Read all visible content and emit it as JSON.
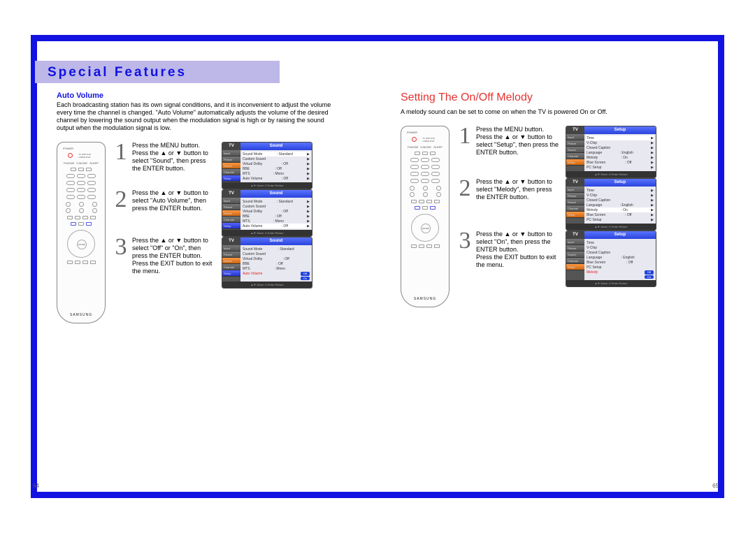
{
  "colors": {
    "frame": "#1212e2",
    "headerBand": "#bdb8e8",
    "sectionTitle": "#e63232",
    "osdHeaderGradFrom": "#5a74ff",
    "osdHeaderGradTo": "#2a44dd"
  },
  "header": "Special Features",
  "pageLeft": "64",
  "pageRight": "65",
  "left": {
    "subtitle": "Auto Volume",
    "intro": "Each broadcasting station has its own signal conditions, and it is inconvenient to adjust the volume every time the channel is changed. \"Auto Volume\" automatically adjusts the volume of the desired channel by lowering the sound output when the modulation signal is high or by raising the sound output when the modulation signal is low.",
    "steps": [
      {
        "n": "1",
        "text": "Press the MENU button.\nPress the ▲ or ▼ button to select \"Sound\", then press the ENTER button."
      },
      {
        "n": "2",
        "text": "Press the ▲ or ▼ button to select \"Auto Volume\", then press the ENTER button."
      },
      {
        "n": "3",
        "text": "Press the ▲ or ▼ button to select \"Off\" or \"On\", then press the ENTER button.\nPress the EXIT button to exit the menu."
      }
    ],
    "osdTitle": "Sound",
    "osdTv": "TV",
    "sideMenu": [
      "Input",
      "Picture",
      "Sound",
      "Channel",
      "Setup"
    ],
    "osd1Rows": [
      [
        "Sound Mode",
        ": Standard",
        "▶"
      ],
      [
        "Custom Sound",
        "",
        "▶"
      ],
      [
        "Virtual Dolby",
        ": Off",
        "▶"
      ],
      [
        "BBE",
        ": Off",
        "▶"
      ],
      [
        "MTS",
        ": Mono",
        "▶"
      ],
      [
        "Auto Volume",
        ": Off",
        "▶"
      ]
    ],
    "osd2Rows": [
      [
        "Sound Mode",
        ": Standard",
        "▶"
      ],
      [
        "Custom Sound",
        "",
        "▶"
      ],
      [
        "Virtual Dolby",
        ": Off",
        "▶"
      ],
      [
        "BBE",
        ": Off",
        "▶"
      ],
      [
        "MTS",
        ": Mono",
        "▶"
      ],
      [
        "Auto Volume",
        ": Off",
        "▶"
      ]
    ],
    "osd3RowsRed": "Auto Volume",
    "osd3Pill": "On",
    "osd3Rows": [
      [
        "Sound Mode",
        ": Standard",
        ""
      ],
      [
        "Custom Sound",
        "",
        ""
      ],
      [
        "Virtual Dolby",
        ": Off",
        ""
      ],
      [
        "BBE",
        ": Off",
        ""
      ],
      [
        "MTS",
        ": Mono",
        ""
      ]
    ],
    "osdFoot": "▲▼ Move   ⏎ Enter   Return"
  },
  "right": {
    "title": "Setting The On/Off Melody",
    "intro": "A melody sound can be set to come on when the TV is powered On or Off.",
    "steps": [
      {
        "n": "1",
        "text": "Press the MENU button.\nPress the ▲ or ▼ button to select \"Setup\", then press the ENTER button."
      },
      {
        "n": "2",
        "text": "Press the ▲ or ▼ button to select \"Melody\", then press the ENTER button."
      },
      {
        "n": "3",
        "text": "Press the ▲ or ▼ button to select \"On\", then press the ENTER button.\nPress the EXIT button to exit the menu."
      }
    ],
    "osdTitle": "Setup",
    "osdTv": "TV",
    "sideMenu": [
      "Input",
      "Picture",
      "Sound",
      "Channel",
      "Setup"
    ],
    "osd1Rows": [
      [
        "Time",
        "",
        "▶"
      ],
      [
        "V-Chip",
        "",
        "▶"
      ],
      [
        "Closed Caption",
        "",
        "▶"
      ],
      [
        "Language",
        ": English",
        "▶"
      ],
      [
        "Melody",
        ": On",
        "▶"
      ],
      [
        "Blue Screen",
        ": Off",
        "▶"
      ],
      [
        "PC Setup",
        "",
        "▶"
      ]
    ],
    "osd2Rows": [
      [
        "Time",
        "",
        "▶"
      ],
      [
        "V-Chip",
        "",
        "▶"
      ],
      [
        "Closed Caption",
        "",
        "▶"
      ],
      [
        "Language",
        ": English",
        "▶"
      ],
      [
        "Melody",
        ": On",
        "▶"
      ],
      [
        "Blue Screen",
        ": Off",
        "▶"
      ],
      [
        "PC Setup",
        "",
        "▶"
      ]
    ],
    "osd3RowsRed": "Melody",
    "osd3Pill": "On",
    "osd3Rows": [
      [
        "Time",
        "",
        ""
      ],
      [
        "V-Chip",
        "",
        ""
      ],
      [
        "Closed Caption",
        "",
        ""
      ],
      [
        "Language",
        ": English",
        ""
      ],
      [
        "Blue Screen",
        ": Off",
        ""
      ],
      [
        "PC Setup",
        "",
        ""
      ]
    ],
    "osdFoot": "▲▼ Move   ⏎ Enter   Return"
  },
  "remote": {
    "brand": "SAMSUNG",
    "enter": "ENTER",
    "topLabels": "TV  STB  VCR  CABLE  DVD",
    "power": "POWER",
    "pmode": "P.MODE",
    "smode": "S.MODE",
    "sleep": "SLEEP"
  }
}
